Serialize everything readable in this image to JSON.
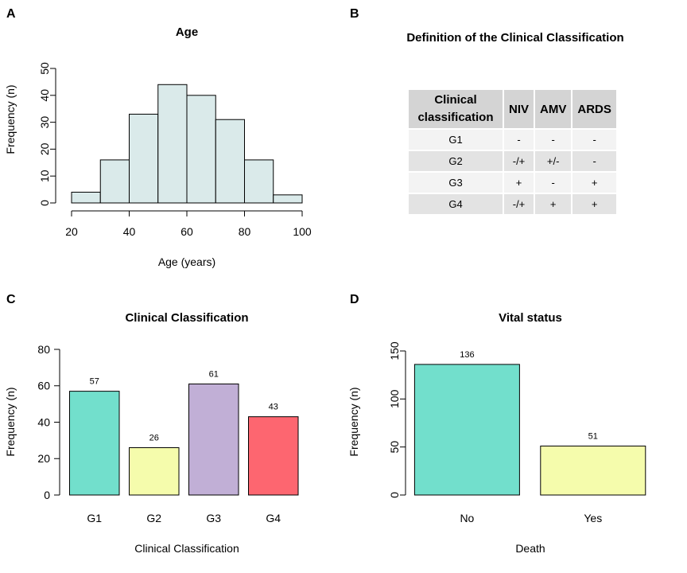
{
  "panels": {
    "a": "A",
    "b": "B",
    "c": "C",
    "d": "D"
  },
  "table_b": {
    "title": "Definition of the Clinical Classification",
    "headers": [
      "Clinical classification",
      "NIV",
      "AMV",
      "ARDS"
    ],
    "rows": [
      [
        "G1",
        "-",
        "-",
        "-"
      ],
      [
        "G2",
        "-/+",
        "+/-",
        "-"
      ],
      [
        "G3",
        "+",
        "-",
        "+"
      ],
      [
        "G4",
        "-/+",
        "+",
        "+"
      ]
    ]
  },
  "chart_data": [
    {
      "type": "bar",
      "subtype": "histogram",
      "title": "Age",
      "xlabel": "Age (years)",
      "ylabel": "Frequency (n)",
      "bin_edges": [
        20,
        30,
        40,
        50,
        60,
        70,
        80,
        90,
        100
      ],
      "values": [
        4,
        16,
        33,
        44,
        40,
        31,
        16,
        3
      ],
      "xlim": [
        20,
        100
      ],
      "ylim": [
        0,
        50
      ],
      "x_ticks": [
        20,
        40,
        60,
        80,
        100
      ],
      "y_ticks": [
        0,
        10,
        20,
        30,
        40,
        50
      ],
      "color": "#daeaea",
      "grid": false
    },
    {
      "type": "bar",
      "title": "Clinical Classification",
      "xlabel": "Clinical Classification",
      "ylabel": "Frequency (n)",
      "categories": [
        "G1",
        "G2",
        "G3",
        "G4"
      ],
      "values": [
        57,
        26,
        61,
        43
      ],
      "data_labels": [
        "57",
        "26",
        "61",
        "43"
      ],
      "colors": [
        "#72dfcc",
        "#f5fcac",
        "#c1afd6",
        "#fd6670"
      ],
      "ylim": [
        0,
        80
      ],
      "y_ticks": [
        0,
        20,
        40,
        60,
        80
      ],
      "grid": false
    },
    {
      "type": "bar",
      "title": "Vital status",
      "xlabel": "Death",
      "ylabel": "Frequency (n)",
      "categories": [
        "No",
        "Yes"
      ],
      "values": [
        136,
        51
      ],
      "data_labels": [
        "136",
        "51"
      ],
      "colors": [
        "#72dfcc",
        "#f5fcac"
      ],
      "ylim": [
        0,
        150
      ],
      "y_ticks": [
        0,
        50,
        100,
        150
      ],
      "grid": false
    }
  ]
}
